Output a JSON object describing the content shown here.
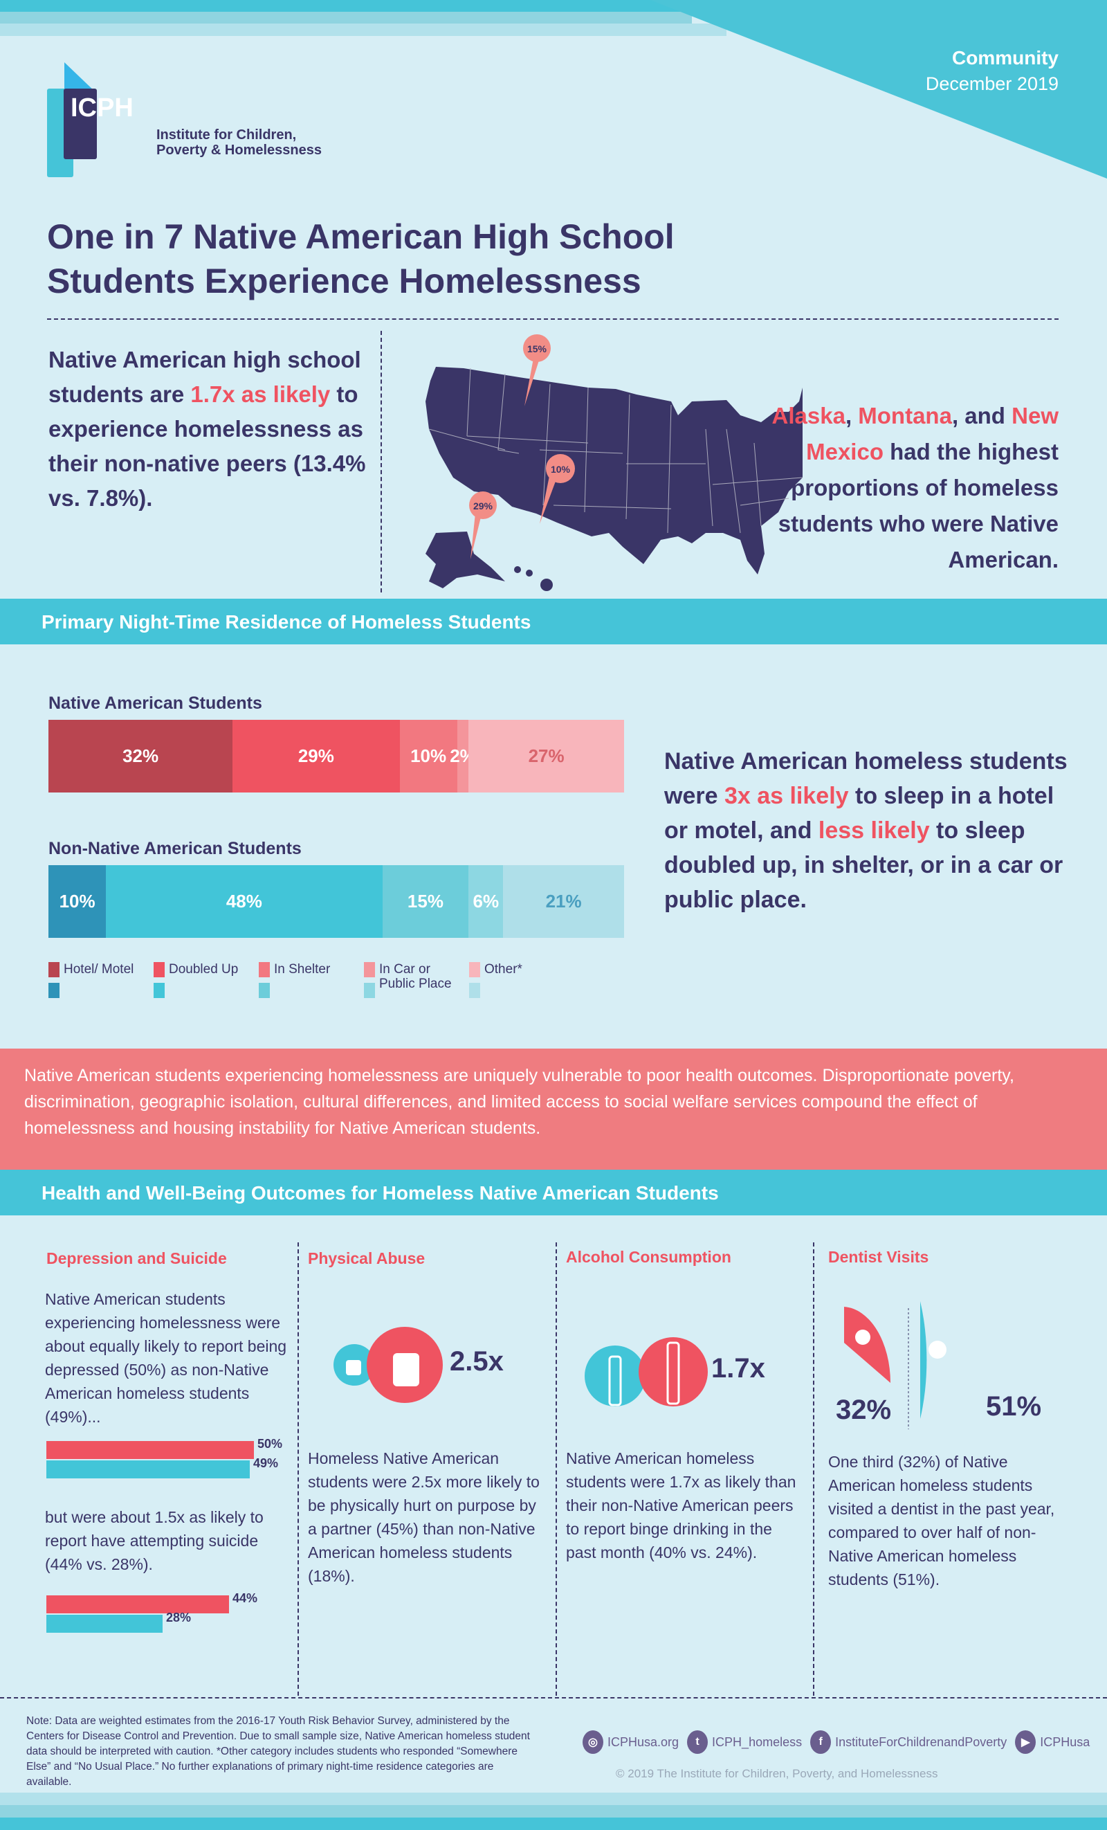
{
  "header": {
    "category": "Community",
    "date": "December 2019",
    "logo_text": "ICPH",
    "org_name_line1": "Institute for Children,",
    "org_name_line2": "Poverty & Homelessness"
  },
  "title": {
    "line1": "One in 7 Native American High School",
    "line2": "Students Experience Homelessness"
  },
  "intro": {
    "p1": "Native American high school students are ",
    "highlight": "1.7x as likely",
    "p2": " to experience homelessness as their non-native peers (13.4% vs. 7.8%)."
  },
  "map": {
    "pins": [
      {
        "state": "Montana",
        "label": "15%"
      },
      {
        "state": "New Mexico",
        "label": "10%"
      },
      {
        "state": "Alaska",
        "label": "29%"
      }
    ]
  },
  "states_text": {
    "s1": "Alaska",
    "sep1": ", ",
    "s2": "Montana",
    "sep2": ", and ",
    "s3": "New Mexico",
    "rest": " had the highest proportions of homeless students who were Native American."
  },
  "residence": {
    "section_title": "Primary Night-Time Residence of Homeless Students",
    "chart_data": {
      "type": "bar",
      "stacked": true,
      "categories": [
        "Hotel/ Motel",
        "Doubled Up",
        "In Shelter",
        "In Car or Public Place",
        "Other*"
      ],
      "series": [
        {
          "name": "Native American Students",
          "values": [
            32,
            29,
            10,
            2,
            27
          ],
          "labels": [
            "32%",
            "29%",
            "10%",
            "2%",
            "27%"
          ],
          "colors": [
            "#b94550",
            "#ef5361",
            "#f27880",
            "#f4959b",
            "#f8b5bb"
          ]
        },
        {
          "name": "Non-Native American Students",
          "values": [
            10,
            48,
            15,
            6,
            21
          ],
          "labels": [
            "10%",
            "48%",
            "15%",
            "6%",
            "21%"
          ],
          "colors": [
            "#2e93b8",
            "#42c5d8",
            "#6ccdda",
            "#8dd7e2",
            "#afdfe9"
          ]
        }
      ]
    },
    "legend": [
      "Hotel/ Motel",
      "Doubled Up",
      "In Shelter",
      "In Car or Public Place",
      "Other*"
    ],
    "callout": {
      "p1": "Native American homeless students were ",
      "h1": "3x as likely",
      "p2": " to sleep in a hotel or motel, and ",
      "h2": "less likely",
      "p3": " to sleep doubled up, in shelter, or in a car or public place."
    }
  },
  "vulnerability_text": "Native American students experiencing homelessness are uniquely vulnerable to poor health outcomes. Disproportionate poverty, discrimination, geographic isolation, cultural differences, and limited access to social welfare services compound the effect of homelessness and housing instability for Native American students.",
  "health": {
    "section_title": "Health and Well-Being Outcomes for Homeless Native American Students",
    "depression": {
      "title": "Depression and Suicide",
      "text1": "Native American students experiencing homelessness were about equally likely to report being depressed (50%) as non-Native American homeless students (49%)...",
      "bars1": [
        {
          "value": 50,
          "label": "50%"
        },
        {
          "value": 49,
          "label": "49%"
        }
      ],
      "text2": "but were about 1.5x as likely to report have attempting suicide (44% vs. 28%).",
      "bars2": [
        {
          "value": 44,
          "label": "44%"
        },
        {
          "value": 28,
          "label": "28%"
        }
      ]
    },
    "abuse": {
      "title": "Physical Abuse",
      "stat": "2.5x",
      "text": "Homeless Native American students were 2.5x more likely to be physically hurt on purpose by a partner (45%) than non-Native American homeless students (18%)."
    },
    "alcohol": {
      "title": "Alcohol Consumption",
      "stat": "1.7x",
      "text": "Native American homeless students were 1.7x as likely than their non-Native American peers to report binge drinking in the past month (40% vs. 24%)."
    },
    "dentist": {
      "title": "Dentist Visits",
      "native_value": "32%",
      "non_native_value": "51%",
      "text": "One third (32%) of Native American homeless students visited a dentist in the past year, compared to over half of non-Native American homeless students (51%)."
    }
  },
  "footer": {
    "note": "Note: Data are weighted estimates from the 2016-17 Youth Risk Behavior Survey, administered by the Centers for Disease Control and Prevention. Due to small sample size, Native American homeless student data should be interpreted with caution. *Other category includes students who responded “Somewhere Else” and “No Usual Place.” No further explanations of primary night-time residence categories are available.",
    "social": [
      {
        "icon": "globe-icon",
        "label": "ICPHusa.org"
      },
      {
        "icon": "twitter-icon",
        "label": "ICPH_homeless"
      },
      {
        "icon": "facebook-icon",
        "label": "InstituteForChildrenandPoverty"
      },
      {
        "icon": "youtube-icon",
        "label": "ICPHusa"
      }
    ],
    "copyright": "© 2019 The Institute for Children, Poverty, and Homelessness"
  },
  "colors": {
    "navy": "#3a3567",
    "red": "#ef5361",
    "teal": "#45c4d8",
    "coral": "#ef7c80",
    "background": "#d7eef5"
  }
}
